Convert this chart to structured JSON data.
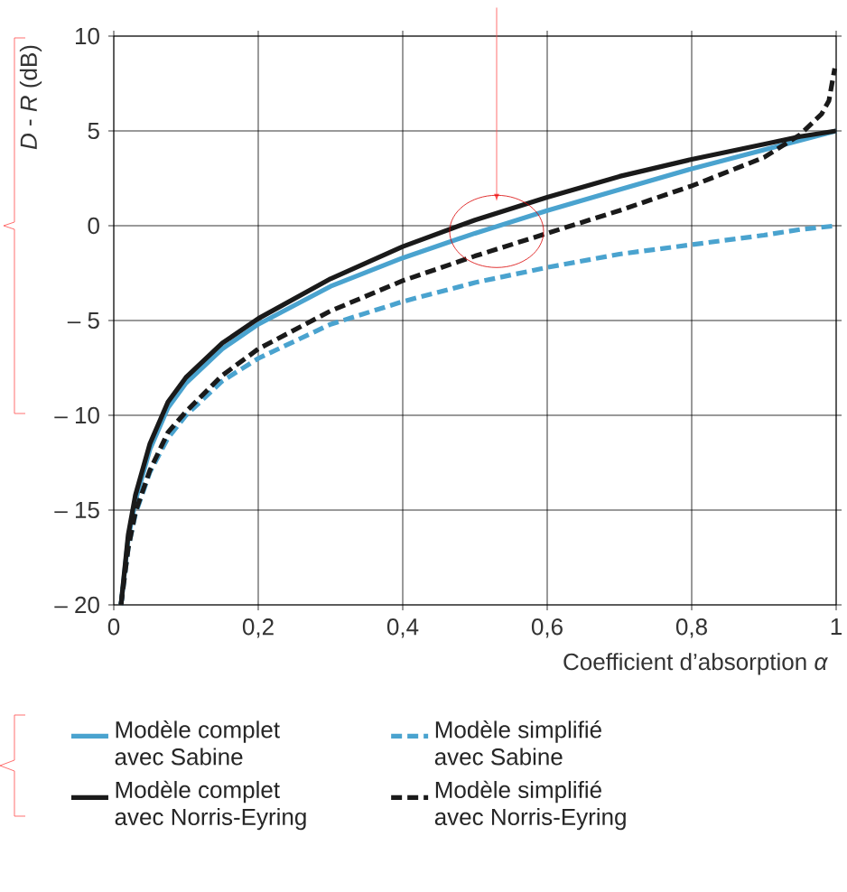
{
  "chart_data": {
    "type": "line",
    "xlabel": "Coefficient d’absorption *α*",
    "ylabel": "*D* - *R* (dB)",
    "xlim": [
      0,
      1
    ],
    "ylim": [
      -20,
      10
    ],
    "xticks": [
      0,
      {
        "value": 0.2,
        "label": "0,2"
      },
      {
        "value": 0.4,
        "label": "0,4"
      },
      {
        "value": 0.6,
        "label": "0,6"
      },
      {
        "value": 0.8,
        "label": "0,8"
      },
      1
    ],
    "yticks": [
      {
        "value": -20,
        "label": "– 20"
      },
      {
        "value": -15,
        "label": "– 15"
      },
      {
        "value": -10,
        "label": "– 10"
      },
      {
        "value": -5,
        "label": "– 5"
      },
      0,
      5,
      10
    ],
    "grid": true,
    "legend": "bottom",
    "series": [
      {
        "name": "Modèle complet avec Sabine",
        "color": "#4aa3cf",
        "line_style": "solid",
        "x": [
          0.01,
          0.02,
          0.03,
          0.05,
          0.075,
          0.1,
          0.15,
          0.2,
          0.3,
          0.4,
          0.5,
          0.6,
          0.7,
          0.8,
          0.9,
          0.95,
          1
        ],
        "values": [
          -20,
          -16.5,
          -14.5,
          -11.8,
          -9.6,
          -8.3,
          -6.5,
          -5.2,
          -3.2,
          -1.7,
          -0.4,
          0.8,
          1.9,
          3,
          4,
          4.5,
          5
        ]
      },
      {
        "name": "Modèle simplifié avec Sabine",
        "color": "#4aa3cf",
        "line_style": "dashed",
        "x": [
          0.01,
          0.02,
          0.03,
          0.05,
          0.075,
          0.1,
          0.15,
          0.2,
          0.3,
          0.4,
          0.5,
          0.6,
          0.7,
          0.8,
          0.9,
          0.95,
          1
        ],
        "values": [
          -20,
          -17,
          -15.2,
          -13,
          -11.2,
          -10,
          -8.2,
          -7,
          -5.2,
          -4,
          -3,
          -2.2,
          -1.5,
          -1,
          -0.5,
          -0.2,
          0
        ]
      },
      {
        "name": "Modèle complet avec Norris-Eyring",
        "color": "#1a1a1a",
        "line_style": "solid",
        "x": [
          0.01,
          0.02,
          0.03,
          0.05,
          0.075,
          0.1,
          0.15,
          0.2,
          0.3,
          0.4,
          0.5,
          0.6,
          0.7,
          0.8,
          0.9,
          0.95,
          1
        ],
        "values": [
          -20,
          -16.3,
          -14.2,
          -11.5,
          -9.3,
          -8,
          -6.2,
          -4.9,
          -2.8,
          -1.1,
          0.3,
          1.5,
          2.6,
          3.5,
          4.3,
          4.7,
          5
        ]
      },
      {
        "name": "Modèle simplifié avec Norris-Eyring",
        "color": "#1a1a1a",
        "line_style": "dashed",
        "x": [
          0.01,
          0.02,
          0.03,
          0.05,
          0.075,
          0.1,
          0.15,
          0.2,
          0.3,
          0.4,
          0.5,
          0.6,
          0.7,
          0.8,
          0.9,
          0.95,
          0.98,
          0.99,
          0.998
        ],
        "values": [
          -20,
          -17,
          -15.1,
          -12.9,
          -10.9,
          -9.8,
          -7.9,
          -6.5,
          -4.5,
          -2.9,
          -1.6,
          -0.4,
          0.8,
          2.1,
          3.6,
          4.8,
          5.9,
          6.6,
          8.3
        ]
      }
    ]
  }
}
